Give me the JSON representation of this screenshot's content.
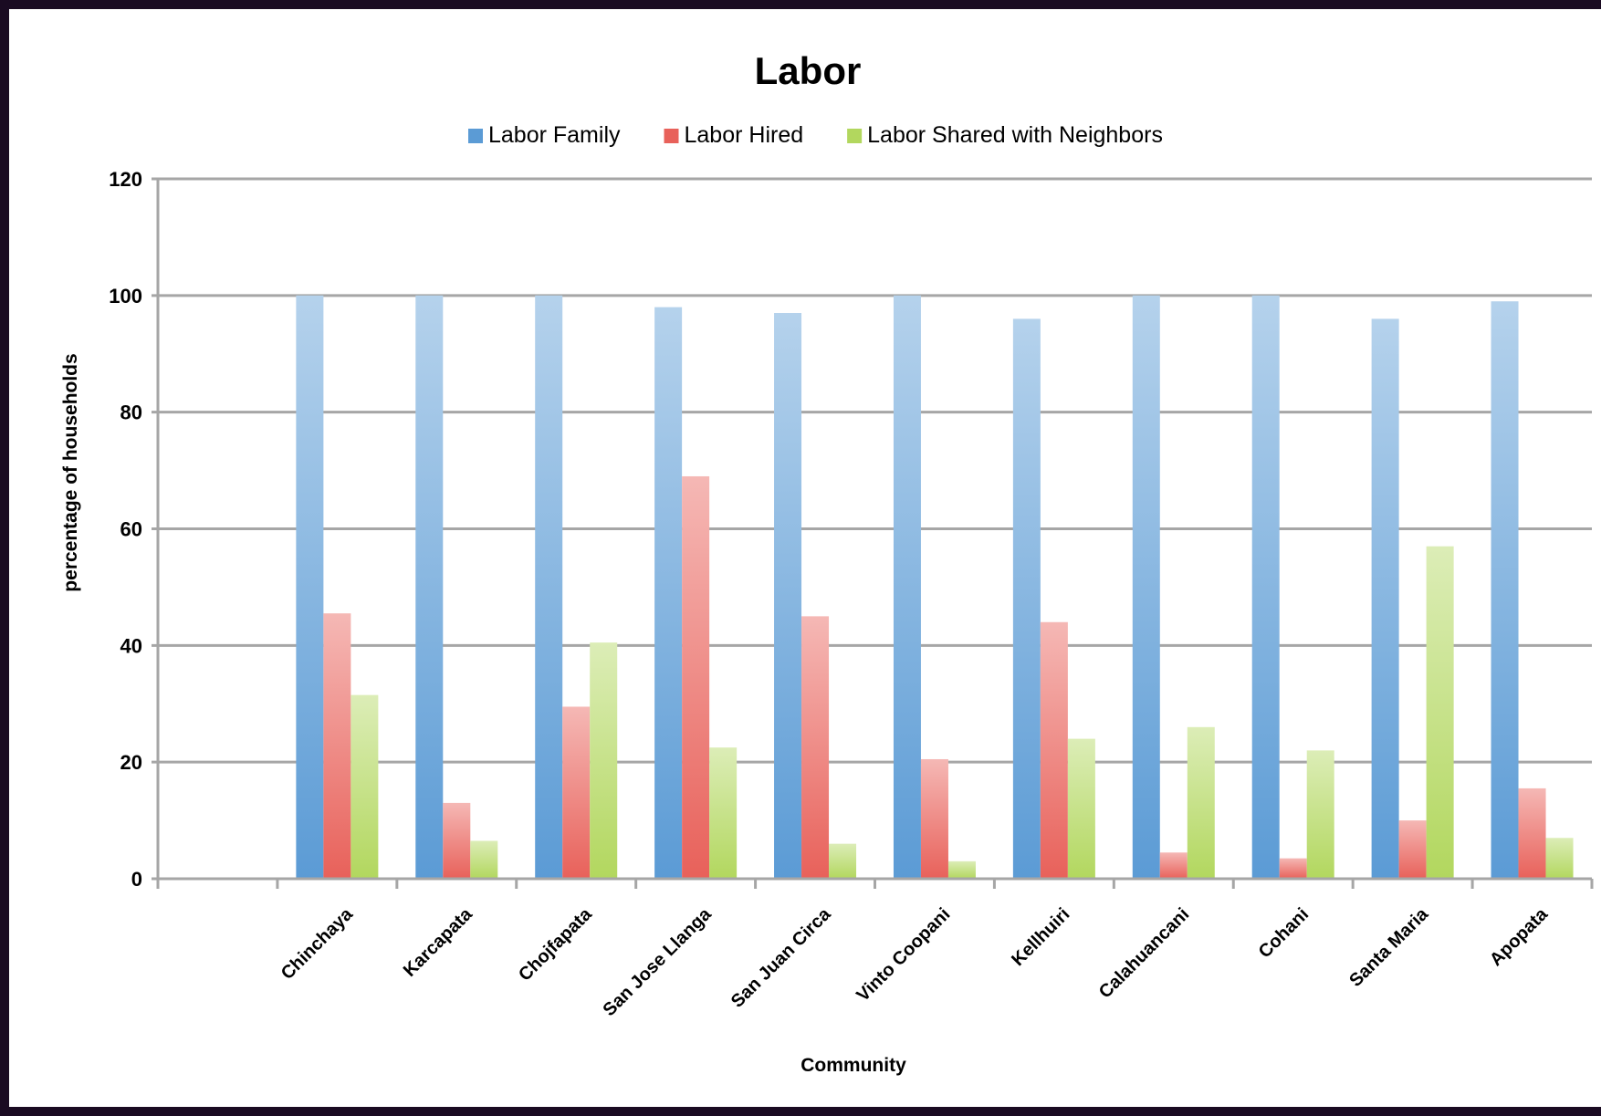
{
  "chart_data": {
    "type": "bar",
    "title": "Labor",
    "xlabel": "Community",
    "ylabel": "percentage of households",
    "ylim": [
      0,
      120
    ],
    "yticks": [
      0,
      20,
      40,
      60,
      80,
      100,
      120
    ],
    "grid": true,
    "legend_position": "top",
    "categories": [
      "",
      "Chinchaya",
      "Karcapata",
      "Chojfapata",
      "San Jose Llanga",
      "San Juan Circa",
      "Vinto Coopani",
      "Kellhuiri",
      "Calahuancani",
      "Cohani",
      "Santa Maria",
      "Apopata"
    ],
    "series": [
      {
        "name": "Labor Family",
        "color": "#5b9bd5",
        "values": [
          null,
          100,
          100,
          100,
          98,
          97,
          100,
          96,
          100,
          100,
          96,
          99
        ]
      },
      {
        "name": "Labor Hired",
        "color": "#e8615a",
        "values": [
          null,
          45.5,
          13,
          29.5,
          69,
          45,
          20.5,
          44,
          4.5,
          3.5,
          10,
          15.5
        ]
      },
      {
        "name": "Labor Shared with Neighbors",
        "color": "#b2d75e",
        "values": [
          null,
          31.5,
          6.5,
          40.5,
          22.5,
          6,
          3,
          24,
          26,
          22,
          57,
          7
        ]
      }
    ]
  }
}
